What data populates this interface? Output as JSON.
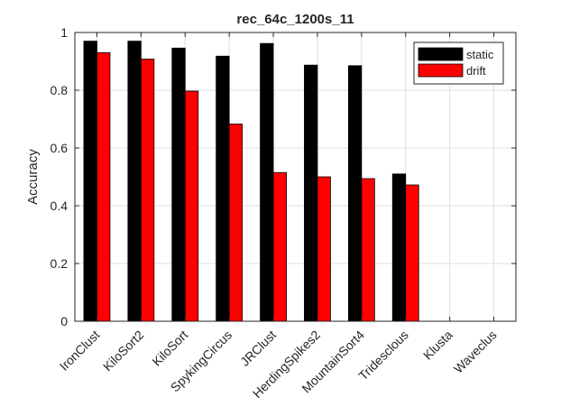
{
  "chart_data": {
    "type": "bar",
    "title": "rec_64c_1200s_11",
    "xlabel": "",
    "ylabel": "Accuracy",
    "ylim": [
      0,
      1
    ],
    "yticks": [
      0,
      0.2,
      0.4,
      0.6,
      0.8,
      1
    ],
    "ytick_labels": [
      "0",
      "0.2",
      "0.4",
      "0.6",
      "0.8",
      "1"
    ],
    "grid": true,
    "legend_position": "top-right",
    "categories": [
      "IronClust",
      "KiloSort2",
      "KiloSort",
      "SpykingCircus",
      "JRClust",
      "HerdingSpikes2",
      "MountainSort4",
      "Tridesclous",
      "Klusta",
      "Waveclus"
    ],
    "series": [
      {
        "name": "static",
        "color": "#000000",
        "values": [
          0.97,
          0.97,
          0.946,
          0.918,
          0.962,
          0.887,
          0.885,
          0.51,
          0,
          0
        ]
      },
      {
        "name": "drift",
        "color": "#ff0000",
        "values": [
          0.93,
          0.908,
          0.797,
          0.683,
          0.515,
          0.5,
          0.494,
          0.472,
          0,
          0
        ]
      }
    ]
  }
}
